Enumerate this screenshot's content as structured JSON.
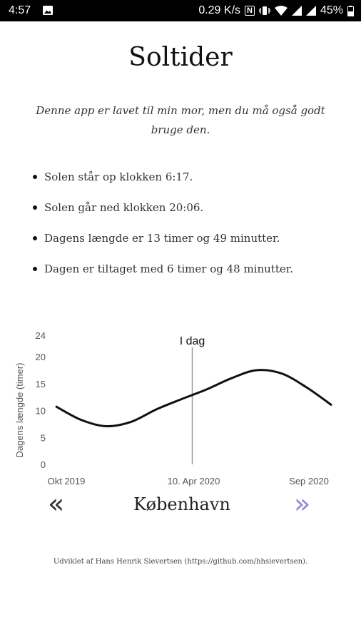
{
  "status_bar": {
    "time": "4:57",
    "network_speed": "0.29 K/s",
    "nfc": "N",
    "battery": "45%"
  },
  "app": {
    "title": "Soltider",
    "intro": "Denne app er lavet til min mor, men du må også godt bruge den."
  },
  "facts": [
    "Solen står op klokken 6:17.",
    "Solen går ned klokken 20:06.",
    "Dagens længde er 13 timer og 49 minutter.",
    "Dagen er tiltaget med 6 timer og 48 minutter."
  ],
  "chart_data": {
    "type": "line",
    "ylabel": "Dagens længde (timer)",
    "yticks": [
      0,
      5,
      10,
      15,
      20,
      24
    ],
    "ylim": [
      0,
      24
    ],
    "xlabels": [
      "Okt 2019",
      "10. Apr 2020",
      "Sep 2020"
    ],
    "marker_label": "I dag",
    "marker_position": 0.5,
    "series": [
      {
        "x": [
          "Okt 2019",
          "Nov 2019",
          "Dec 2019",
          "Jan 2020",
          "Feb 2020",
          "Mar 2020",
          "Apr 2020",
          "May 2020",
          "Jun 2020",
          "Jul 2020",
          "Aug 2020",
          "Sep 2020"
        ],
        "values": [
          10.8,
          8.3,
          7.1,
          7.9,
          10.2,
          12.1,
          13.9,
          16.0,
          17.5,
          16.9,
          14.3,
          11.0
        ]
      }
    ],
    "line_color": "#111111",
    "marker_color": "#999999",
    "grid": false
  },
  "navigation": {
    "prev": "«",
    "city": "København",
    "next": "»"
  },
  "footer": "Udviklet af Hans Henrik Sievertsen (https://github.com/hhsievertsen).",
  "colors": {
    "next_arrow": "#8f8ad6",
    "prev_arrow": "#333333",
    "status_bar_bg": "#000000"
  }
}
